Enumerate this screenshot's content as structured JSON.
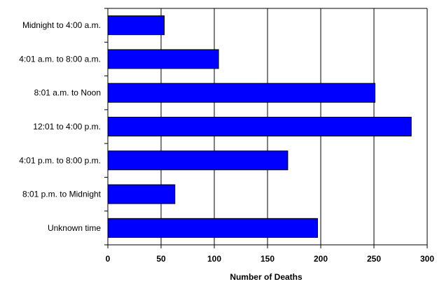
{
  "chart_data": {
    "type": "bar",
    "orientation": "horizontal",
    "categories": [
      "Midnight to 4:00 a.m.",
      "4:01 a.m. to 8:00 a.m.",
      "8:01 a.m. to Noon",
      "12:01 to 4:00 p.m.",
      "4:01 p.m. to 8:00 p.m.",
      "8:01 p.m. to Midnight",
      "Unknown time"
    ],
    "values": [
      53,
      104,
      251,
      285,
      169,
      63,
      197
    ],
    "xlabel": "Number of Deaths",
    "ylabel": "",
    "title": "",
    "xlim": [
      0,
      300
    ],
    "xticks": [
      0,
      50,
      100,
      150,
      200,
      250,
      300
    ],
    "grid": "vertical",
    "legend": "none",
    "bar_color": "#0000FF",
    "bar_outline_color": "#000000"
  }
}
